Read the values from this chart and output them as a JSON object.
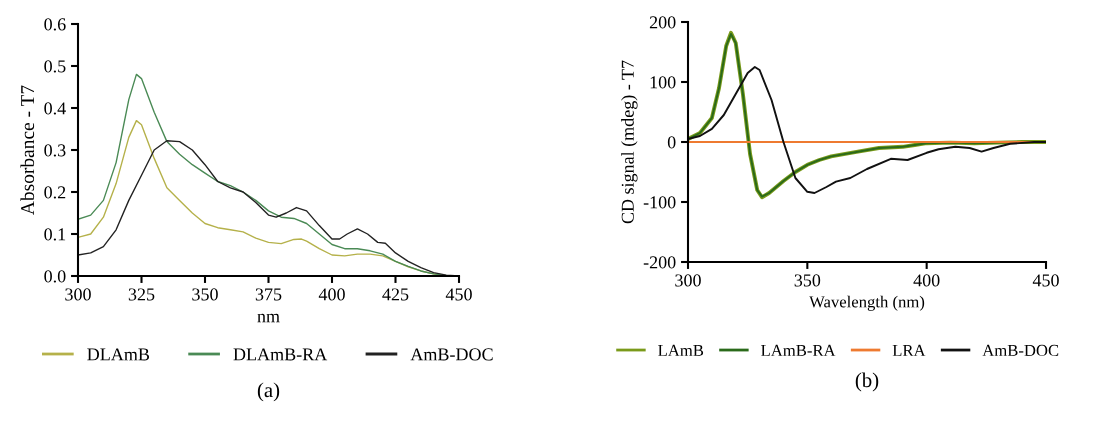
{
  "chart_data": [
    {
      "type": "line",
      "xlabel": "nm",
      "ylabel": "Absorbance - T7",
      "xlim": [
        300,
        450
      ],
      "ylim": [
        0,
        0.6
      ],
      "xticks": [
        300,
        325,
        350,
        375,
        400,
        425,
        450
      ],
      "yticks": [
        {
          "value": 0,
          "label": "0.0"
        },
        0.1,
        0.2,
        0.3,
        0.4,
        0.5,
        0.6
      ],
      "grid": false,
      "legend": "bottom",
      "annotations": [
        "(a)"
      ],
      "series": [
        {
          "name": "DLAmB",
          "color": "#b5b14a",
          "x": [
            300,
            305,
            310,
            315,
            320,
            323,
            325,
            330,
            335,
            340,
            345,
            350,
            355,
            360,
            365,
            370,
            375,
            380,
            385,
            388,
            390,
            395,
            400,
            405,
            410,
            415,
            420,
            425,
            430,
            435,
            440,
            445,
            450
          ],
          "values": [
            0.092,
            0.1,
            0.14,
            0.22,
            0.33,
            0.37,
            0.36,
            0.28,
            0.21,
            0.18,
            0.15,
            0.125,
            0.115,
            0.11,
            0.105,
            0.09,
            0.08,
            0.077,
            0.087,
            0.088,
            0.083,
            0.065,
            0.05,
            0.048,
            0.052,
            0.052,
            0.048,
            0.035,
            0.022,
            0.012,
            0.005,
            0.001,
            0
          ]
        },
        {
          "name": "DLAmB-RA",
          "color": "#4a8a55",
          "x": [
            300,
            305,
            310,
            315,
            320,
            323,
            325,
            330,
            335,
            340,
            345,
            350,
            355,
            360,
            365,
            370,
            375,
            380,
            385,
            390,
            395,
            400,
            405,
            410,
            415,
            420,
            425,
            430,
            435,
            440,
            445,
            450
          ],
          "values": [
            0.135,
            0.145,
            0.18,
            0.27,
            0.42,
            0.48,
            0.47,
            0.39,
            0.32,
            0.29,
            0.265,
            0.245,
            0.225,
            0.215,
            0.2,
            0.18,
            0.155,
            0.14,
            0.137,
            0.125,
            0.1,
            0.075,
            0.065,
            0.065,
            0.06,
            0.052,
            0.035,
            0.023,
            0.012,
            0.005,
            0.001,
            0
          ]
        },
        {
          "name": "AmB-DOC",
          "color": "#222222",
          "x": [
            300,
            305,
            310,
            315,
            320,
            325,
            330,
            335,
            340,
            345,
            350,
            355,
            360,
            365,
            370,
            375,
            378,
            382,
            386,
            390,
            395,
            400,
            403,
            406,
            410,
            414,
            418,
            421,
            425,
            430,
            435,
            440,
            445,
            450
          ],
          "values": [
            0.05,
            0.055,
            0.07,
            0.11,
            0.18,
            0.24,
            0.3,
            0.322,
            0.32,
            0.3,
            0.265,
            0.225,
            0.21,
            0.2,
            0.175,
            0.145,
            0.14,
            0.15,
            0.163,
            0.155,
            0.12,
            0.088,
            0.088,
            0.1,
            0.112,
            0.1,
            0.08,
            0.078,
            0.055,
            0.035,
            0.02,
            0.008,
            0.002,
            0
          ]
        }
      ]
    },
    {
      "type": "line",
      "xlabel": "Wavelength (nm)",
      "ylabel": "CD signal (mdeg) - T7",
      "xlim": [
        300,
        450
      ],
      "ylim": [
        -200,
        200
      ],
      "xticks": [
        300,
        350,
        400,
        450
      ],
      "yticks": [
        -200,
        -100,
        0,
        100,
        200
      ],
      "grid": false,
      "legend": "bottom",
      "annotations": [
        "(b)"
      ],
      "series": [
        {
          "name": "LAmB",
          "color": "#7a9a1a",
          "x": [
            300,
            305,
            310,
            313,
            316,
            318,
            320,
            323,
            326,
            329,
            331,
            334,
            340,
            345,
            350,
            355,
            360,
            370,
            380,
            390,
            395,
            400,
            410,
            420,
            430,
            440,
            450
          ],
          "values": [
            5,
            15,
            40,
            90,
            160,
            182,
            165,
            80,
            -20,
            -80,
            -92,
            -85,
            -65,
            -50,
            -38,
            -30,
            -24,
            -17,
            -10,
            -8,
            -5,
            -2,
            -1,
            -2,
            -1,
            0,
            0
          ]
        },
        {
          "name": "LAmB-RA",
          "color": "#2a6a1a",
          "x": [
            300,
            305,
            310,
            313,
            316,
            318,
            320,
            323,
            326,
            329,
            331,
            334,
            340,
            345,
            350,
            355,
            360,
            370,
            380,
            390,
            395,
            400,
            410,
            420,
            430,
            440,
            450
          ],
          "values": [
            5,
            15,
            40,
            90,
            160,
            180,
            165,
            80,
            -20,
            -80,
            -91,
            -85,
            -65,
            -50,
            -38,
            -30,
            -24,
            -17,
            -10,
            -8,
            -5,
            -2,
            -1,
            -2,
            -1,
            0,
            0
          ]
        },
        {
          "name": "LRA",
          "color": "#ee7a30",
          "x": [
            300,
            350,
            400,
            450
          ],
          "values": [
            0,
            0,
            0,
            0
          ]
        },
        {
          "name": "AmB-DOC",
          "color": "#111111",
          "x": [
            300,
            305,
            310,
            315,
            320,
            325,
            328,
            330,
            335,
            340,
            345,
            350,
            353,
            358,
            362,
            368,
            375,
            385,
            392,
            400,
            405,
            412,
            418,
            423,
            428,
            435,
            445,
            450
          ],
          "values": [
            5,
            10,
            22,
            45,
            80,
            115,
            125,
            120,
            70,
            0,
            -60,
            -83,
            -85,
            -75,
            -66,
            -60,
            -45,
            -28,
            -30,
            -18,
            -12,
            -8,
            -10,
            -16,
            -10,
            -3,
            0,
            0
          ]
        }
      ]
    }
  ]
}
